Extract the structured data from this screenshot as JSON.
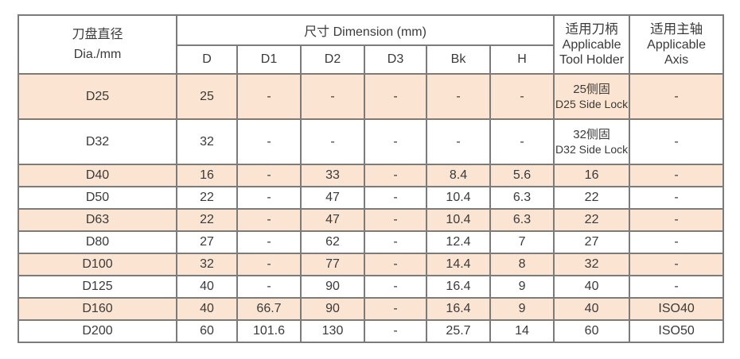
{
  "table": {
    "header": {
      "dia_cn": "刀盘直径",
      "dia_en": "Dia./mm",
      "dimension_label": "尺寸  Dimension (mm)",
      "sub_columns": [
        "D",
        "D1",
        "D2",
        "D3",
        "Bk",
        "H"
      ],
      "holder": {
        "cn": "适用刀柄",
        "en1": "Applicable",
        "en2": "Tool Holder"
      },
      "axis": {
        "cn": "适用主轴",
        "en1": "Applicable",
        "en2": "Axis"
      }
    },
    "colors": {
      "row_shade": "#fbe5d2",
      "grid_line": "#7b7b7b",
      "text": "#3a3a3a"
    },
    "rows": [
      {
        "dia": "D25",
        "shaded": true,
        "tall": true,
        "values": [
          "25",
          "-",
          "-",
          "-",
          "-",
          "-"
        ],
        "holder_cn": "25侧固",
        "holder_en": "D25 Side Lock",
        "axis": "-"
      },
      {
        "dia": "D32",
        "shaded": false,
        "tall": true,
        "values": [
          "32",
          "-",
          "-",
          "-",
          "-",
          "-"
        ],
        "holder_cn": "32侧固",
        "holder_en": "D32 Side Lock",
        "axis": "-"
      },
      {
        "dia": "D40",
        "shaded": true,
        "tall": false,
        "values": [
          "16",
          "-",
          "33",
          "-",
          "8.4",
          "5.6"
        ],
        "holder": "16",
        "axis": "-"
      },
      {
        "dia": "D50",
        "shaded": false,
        "tall": false,
        "values": [
          "22",
          "-",
          "47",
          "-",
          "10.4",
          "6.3"
        ],
        "holder": "22",
        "axis": "-"
      },
      {
        "dia": "D63",
        "shaded": true,
        "tall": false,
        "values": [
          "22",
          "-",
          "47",
          "-",
          "10.4",
          "6.3"
        ],
        "holder": "22",
        "axis": "-"
      },
      {
        "dia": "D80",
        "shaded": false,
        "tall": false,
        "values": [
          "27",
          "-",
          "62",
          "-",
          "12.4",
          "7"
        ],
        "holder": "27",
        "axis": "-"
      },
      {
        "dia": "D100",
        "shaded": true,
        "tall": false,
        "values": [
          "32",
          "-",
          "77",
          "-",
          "14.4",
          "8"
        ],
        "holder": "32",
        "axis": "-"
      },
      {
        "dia": "D125",
        "shaded": false,
        "tall": false,
        "values": [
          "40",
          "-",
          "90",
          "-",
          "16.4",
          "9"
        ],
        "holder": "40",
        "axis": "-"
      },
      {
        "dia": "D160",
        "shaded": true,
        "tall": false,
        "values": [
          "40",
          "66.7",
          "90",
          "-",
          "16.4",
          "9"
        ],
        "holder": "40",
        "axis": "ISO40"
      },
      {
        "dia": "D200",
        "shaded": false,
        "tall": false,
        "values": [
          "60",
          "101.6",
          "130",
          "-",
          "25.7",
          "14"
        ],
        "holder": "60",
        "axis": "ISO50"
      }
    ]
  }
}
